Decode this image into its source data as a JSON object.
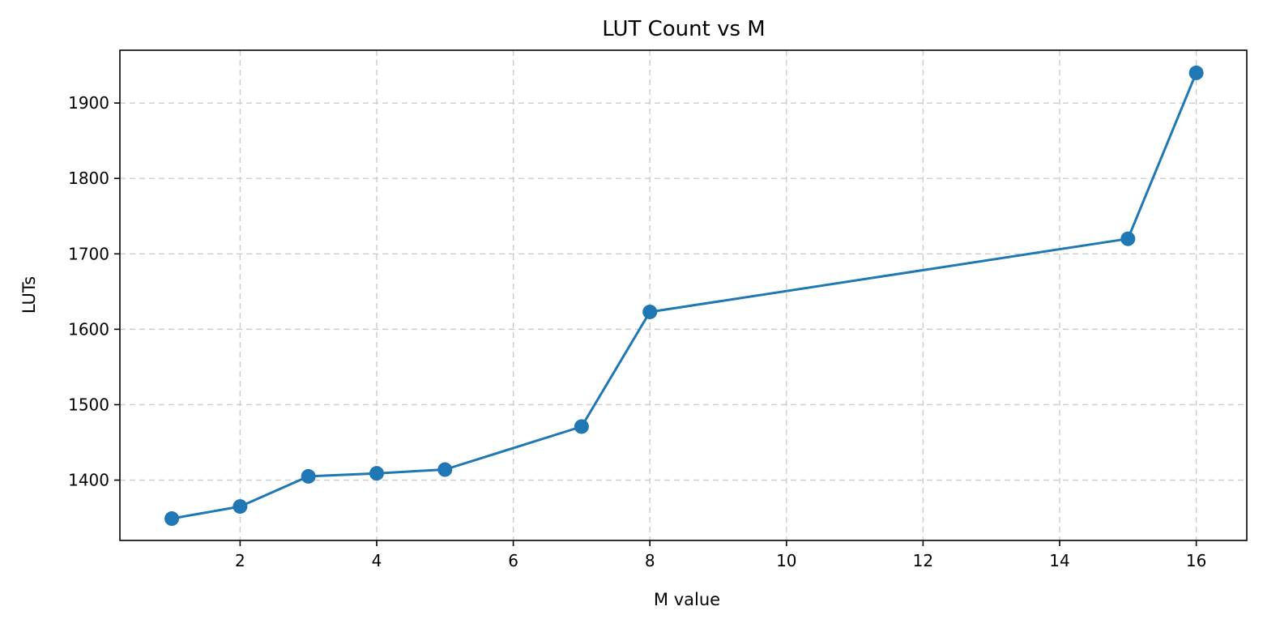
{
  "chart_data": {
    "type": "line",
    "title": "LUT Count vs M",
    "xlabel": "M value",
    "ylabel": "LUTs",
    "xlim": [
      0.24,
      16.74
    ],
    "ylim": [
      1320,
      1970
    ],
    "x_ticks": [
      2,
      4,
      6,
      8,
      10,
      12,
      14,
      16
    ],
    "y_ticks": [
      1400,
      1500,
      1600,
      1700,
      1800,
      1900
    ],
    "grid": true,
    "series": [
      {
        "color": "#1f77b4",
        "marker": "circle",
        "x": [
          1,
          2,
          3,
          4,
          5,
          7,
          8,
          15,
          16
        ],
        "y": [
          1349,
          1365,
          1405,
          1409,
          1414,
          1471,
          1623,
          1720,
          1940
        ]
      }
    ]
  }
}
